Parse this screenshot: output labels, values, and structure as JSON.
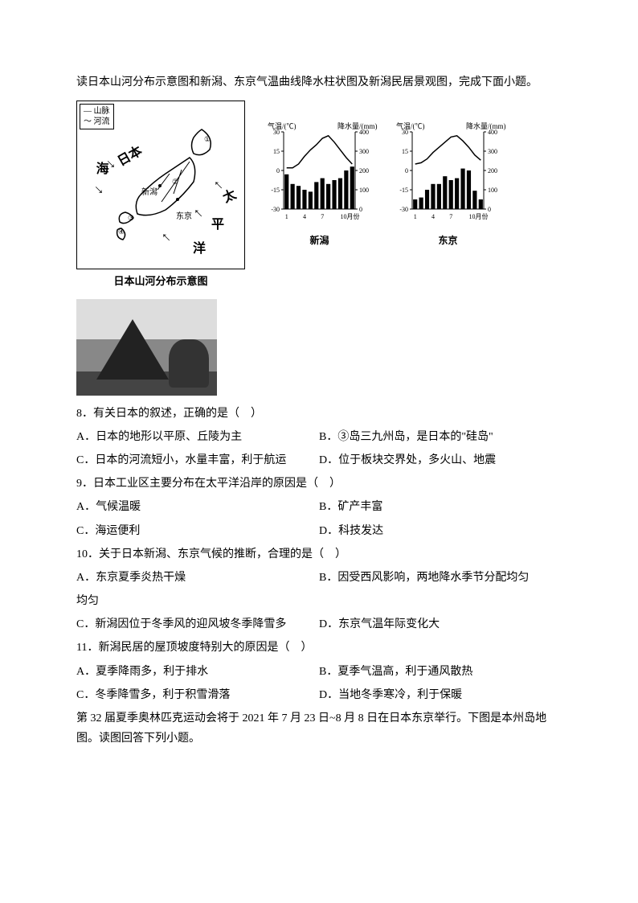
{
  "intro": "读日本山河分布示意图和新潟、东京气温曲线降水柱状图及新潟民居景观图，完成下面小题。",
  "map": {
    "legend_line1": "— 山脉",
    "legend_line2": "～ 河流",
    "caption": "日本山河分布示意图",
    "label_nihon": "日本",
    "label_sea": "海",
    "label_tai": "太",
    "label_ping": "平",
    "label_yang": "洋",
    "city_niigata": "新潟",
    "city_tokyo": "东京"
  },
  "charts": {
    "axis_temp_label": "气温/(℃)",
    "axis_precip_label": "降水量/(mm)",
    "x_axis_label": "10月份",
    "temp_ticks": [
      30,
      15,
      0,
      -15,
      -30
    ],
    "precip_ticks": [
      400,
      300,
      200,
      100,
      0
    ],
    "x_ticks": [
      1,
      4,
      7
    ],
    "niigata": {
      "caption": "新潟",
      "precip": [
        180,
        130,
        120,
        100,
        90,
        140,
        160,
        130,
        150,
        160,
        200,
        220
      ],
      "temp": [
        2,
        2,
        5,
        11,
        16,
        20,
        25,
        27,
        22,
        16,
        10,
        5
      ]
    },
    "tokyo": {
      "caption": "东京",
      "precip": [
        50,
        60,
        100,
        130,
        130,
        170,
        150,
        160,
        210,
        200,
        95,
        50
      ],
      "temp": [
        5,
        6,
        9,
        14,
        18,
        22,
        26,
        27,
        23,
        18,
        12,
        8
      ]
    },
    "colors": {
      "bar": "#000000",
      "line": "#000000",
      "axis": "#000000"
    }
  },
  "q8": {
    "stem": "8．有关日本的叙述，正确的是（　）",
    "a": "A．日本的地形以平原、丘陵为主",
    "b": "B．③岛三九州岛，是日本的\"硅岛\"",
    "c": "C．日本的河流短小，水量丰富，利于航运",
    "d": "D．位于板块交界处，多火山、地震"
  },
  "q9": {
    "stem": "9．日本工业区主要分布在太平洋沿岸的原因是（　）",
    "a": "A．气候温暖",
    "b": "B．矿产丰富",
    "c": "C．海运便利",
    "d": "D．科技发达"
  },
  "q10": {
    "stem": "10．关于日本新潟、东京气候的推断，合理的是（　）",
    "a": "A．东京夏季炎热干燥",
    "b": "B．因受西风影响，两地降水季节分配均匀",
    "c": "C．新潟因位于冬季风的迎风坡冬季降雪多",
    "d": "D．东京气温年际变化大"
  },
  "q11": {
    "stem": "11．新潟民居的屋顶坡度特别大的原因是（　）",
    "a": "A．夏季降雨多，利于排水",
    "b": "B．夏季气温高，利于通风散热",
    "c": "C．冬季降雪多，利于积雪滑落",
    "d": "D．当地冬季寒冷，利于保暖"
  },
  "passage2": "第 32 届夏季奥林匹克运动会将于 2021 年 7 月 23 日~8 月 8 日在日本东京举行。下图是本州岛地图。读图回答下列小题。"
}
